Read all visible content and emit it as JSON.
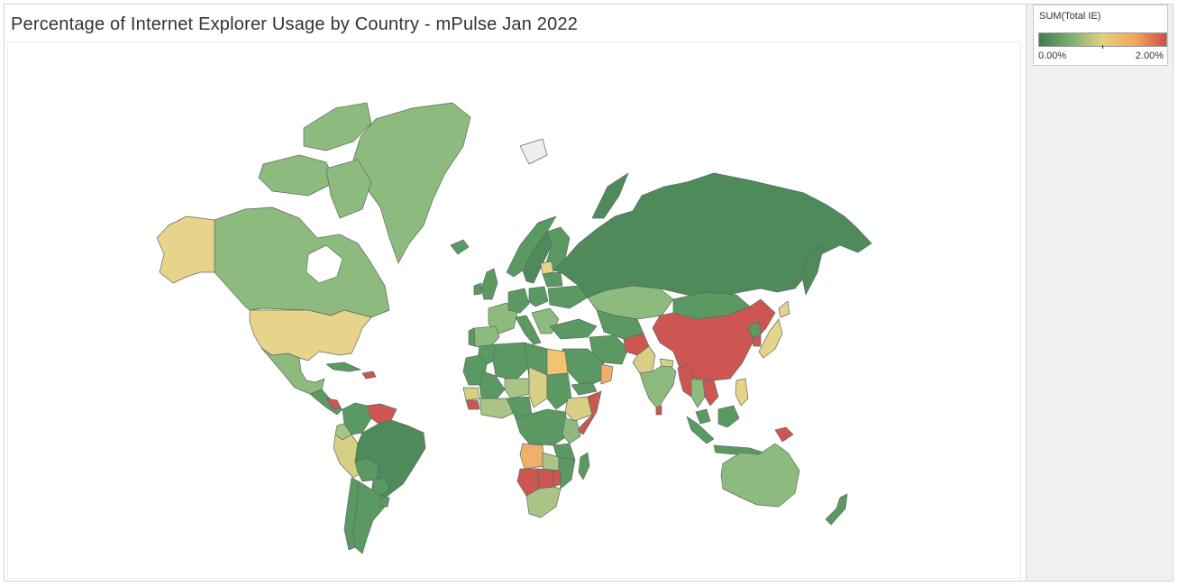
{
  "title": "Percentage of Internet Explorer Usage by Country - mPulse Jan 2022",
  "legend": {
    "title": "SUM(Total IE)",
    "min_label": "0.00%",
    "max_label": "2.00%",
    "gradient_colors": [
      "#3f7d4f",
      "#7bb070",
      "#e4d07f",
      "#f4a85a",
      "#cd4e4a"
    ]
  },
  "colors": {
    "low": "#5a9a62",
    "mid_low": "#8cbd7c",
    "mid": "#e8d38a",
    "mid_high": "#f0b06a",
    "high": "#cd5653"
  },
  "chart_data": {
    "type": "choropleth",
    "measure": "SUM(Total IE)",
    "range": [
      0,
      2.0
    ],
    "unit": "%"
  }
}
